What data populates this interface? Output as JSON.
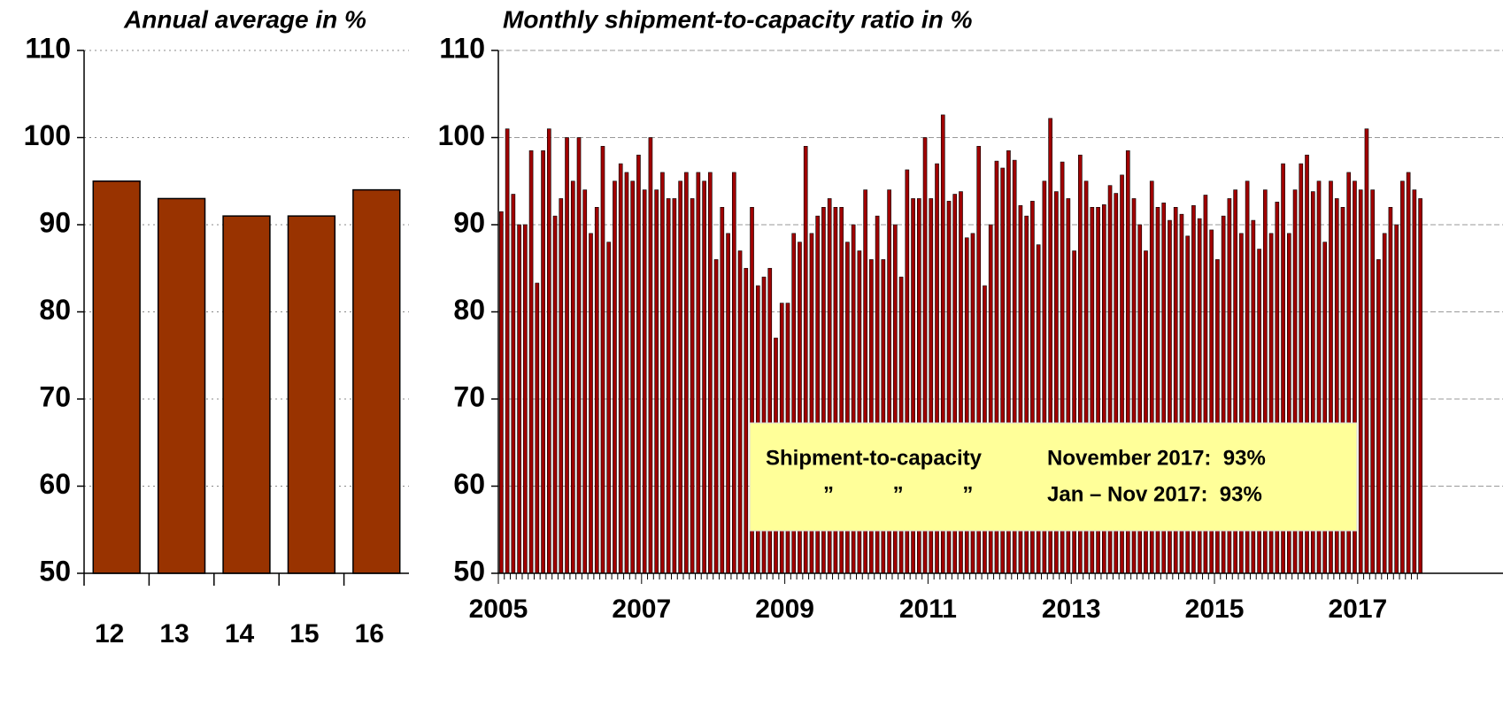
{
  "chart_data": [
    {
      "type": "bar",
      "title": "Annual average in %",
      "categories": [
        "12",
        "13",
        "14",
        "15",
        "16"
      ],
      "values": [
        95,
        93,
        91,
        91,
        94
      ],
      "color": "#993300",
      "ylim": [
        50,
        110
      ],
      "yticks": [
        50,
        60,
        70,
        80,
        90,
        100,
        110
      ],
      "grid": true
    },
    {
      "type": "bar",
      "title": "Monthly shipment-to-capacity ratio in %",
      "categories": [
        "2005",
        null,
        null,
        null,
        null,
        null,
        null,
        null,
        null,
        null,
        null,
        null,
        null,
        null,
        null,
        null,
        null,
        null,
        null,
        null,
        null,
        null,
        null,
        null,
        "2007",
        null,
        null,
        null,
        null,
        null,
        null,
        null,
        null,
        null,
        null,
        null,
        null,
        null,
        null,
        null,
        null,
        null,
        null,
        null,
        null,
        null,
        null,
        null,
        "2009",
        null,
        null,
        null,
        null,
        null,
        null,
        null,
        null,
        null,
        null,
        null,
        null,
        null,
        null,
        null,
        null,
        null,
        null,
        null,
        null,
        null,
        null,
        null,
        "2011",
        null,
        null,
        null,
        null,
        null,
        null,
        null,
        null,
        null,
        null,
        null,
        null,
        null,
        null,
        null,
        null,
        null,
        null,
        null,
        null,
        null,
        null,
        null,
        "2013",
        null,
        null,
        null,
        null,
        null,
        null,
        null,
        null,
        null,
        null,
        null,
        null,
        null,
        null,
        null,
        null,
        null,
        null,
        null,
        null,
        null,
        null,
        null,
        "2015",
        null,
        null,
        null,
        null,
        null,
        null,
        null,
        null,
        null,
        null,
        null,
        null,
        null,
        null,
        null,
        null,
        null,
        null,
        null,
        null,
        null,
        null,
        null,
        "2017",
        null,
        null,
        null,
        null,
        null,
        null,
        null,
        null,
        null,
        null
      ],
      "values": [
        91.5,
        101,
        93.5,
        90,
        90,
        98.5,
        83.3,
        98.5,
        101,
        91,
        93,
        100,
        95,
        100,
        94,
        89,
        92,
        99,
        88,
        95,
        97,
        96,
        95,
        98,
        94,
        100,
        94,
        96,
        93,
        93,
        95,
        96,
        93,
        96,
        95,
        96,
        86,
        92,
        89,
        96,
        87,
        85,
        92,
        83,
        84,
        85,
        77,
        81,
        81,
        89,
        88,
        99,
        89,
        91,
        92,
        93,
        92,
        92,
        88,
        90,
        87,
        94,
        86,
        91,
        86,
        94,
        90,
        84,
        96.3,
        93,
        93,
        100,
        93,
        97,
        102.6,
        92.7,
        93.5,
        93.8,
        88.5,
        89,
        99,
        83,
        90,
        97.3,
        96.5,
        98.5,
        97.4,
        92.2,
        91,
        92.7,
        87.7,
        95,
        102.2,
        93.8,
        97.2,
        93,
        87,
        98,
        95,
        92,
        92,
        92.3,
        94.5,
        93.6,
        95.7,
        98.5,
        93,
        90,
        87,
        95,
        92,
        92.5,
        90.5,
        92,
        91.2,
        88.7,
        92.2,
        90.7,
        93.4,
        89.4,
        86,
        91,
        93,
        94,
        89,
        95,
        90.5,
        87.2,
        94,
        89,
        92.6,
        97,
        89,
        94,
        97,
        98,
        93.8,
        95,
        88,
        95,
        93,
        92,
        96,
        95,
        94,
        101,
        94,
        86,
        89,
        92,
        90,
        95,
        96,
        94,
        93
      ],
      "color": "#a00000",
      "ylim": [
        50,
        110
      ],
      "yticks": [
        50,
        60,
        70,
        80,
        90,
        100,
        110
      ],
      "grid": true,
      "annotations": [
        "Shipment-to-capacity",
        "November 2017:  93%",
        "”          ”          ”",
        "Jan – Nov 2017:  93%"
      ]
    }
  ]
}
